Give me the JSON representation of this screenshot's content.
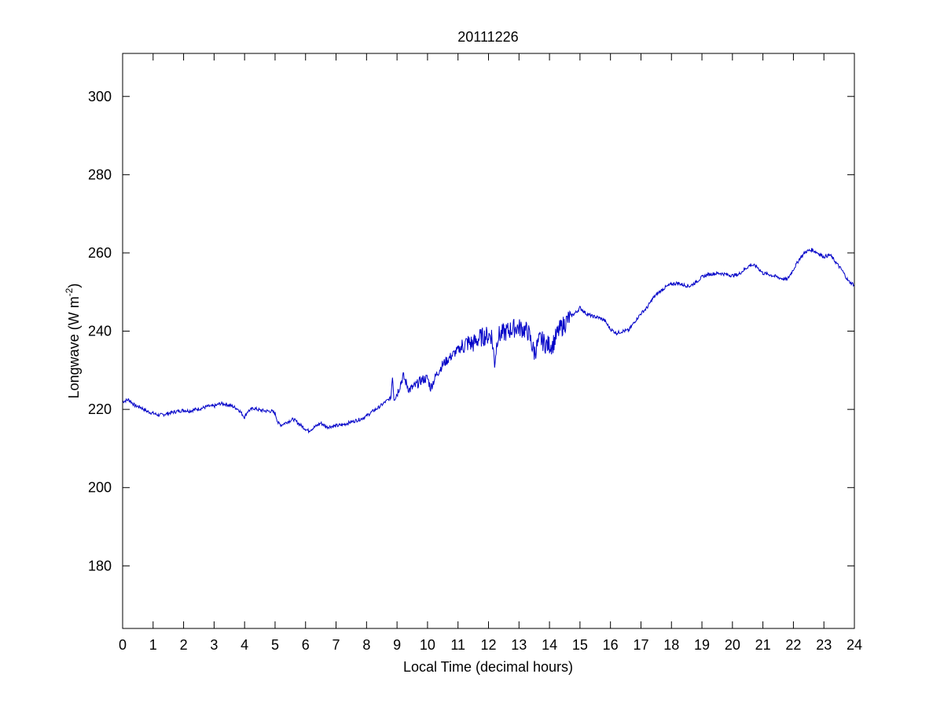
{
  "chart_data": {
    "type": "line",
    "title": "20111226",
    "xlabel": "Local Time (decimal hours)",
    "ylabel": {
      "text": "Longwave (W m",
      "superscript": "-2",
      "suffix": ")"
    },
    "xlim": [
      0,
      24
    ],
    "ylim": [
      164,
      311
    ],
    "x_ticks": [
      0,
      1,
      2,
      3,
      4,
      5,
      6,
      7,
      8,
      9,
      10,
      11,
      12,
      13,
      14,
      15,
      16,
      17,
      18,
      19,
      20,
      21,
      22,
      23,
      24
    ],
    "y_ticks": [
      180,
      200,
      220,
      240,
      260,
      280,
      300
    ],
    "grid": false,
    "line_color": "#0000c8",
    "series": [
      {
        "points": [
          [
            0.0,
            222
          ],
          [
            0.2,
            222.5
          ],
          [
            0.4,
            221
          ],
          [
            0.6,
            220.5
          ],
          [
            0.8,
            219.5
          ],
          [
            1.0,
            219
          ],
          [
            1.2,
            218.5
          ],
          [
            1.4,
            218.8
          ],
          [
            1.6,
            219.2
          ],
          [
            1.8,
            219.5
          ],
          [
            2.0,
            219.8
          ],
          [
            2.2,
            219.6
          ],
          [
            2.4,
            220
          ],
          [
            2.6,
            220.3
          ],
          [
            2.8,
            220.8
          ],
          [
            3.0,
            220.8
          ],
          [
            3.2,
            221.5
          ],
          [
            3.4,
            221.3
          ],
          [
            3.6,
            220.8
          ],
          [
            3.8,
            220
          ],
          [
            3.9,
            219
          ],
          [
            4.0,
            218
          ],
          [
            4.1,
            219.5
          ],
          [
            4.3,
            220.3
          ],
          [
            4.5,
            219.8
          ],
          [
            4.7,
            219.6
          ],
          [
            4.9,
            219.5
          ],
          [
            5.0,
            219
          ],
          [
            5.1,
            216.5
          ],
          [
            5.2,
            216
          ],
          [
            5.4,
            216.8
          ],
          [
            5.6,
            217.5
          ],
          [
            5.8,
            216.2
          ],
          [
            6.0,
            215
          ],
          [
            6.1,
            214.5
          ],
          [
            6.3,
            215.5
          ],
          [
            6.5,
            216.5
          ],
          [
            6.7,
            215.5
          ],
          [
            7.0,
            215.8
          ],
          [
            7.2,
            216
          ],
          [
            7.5,
            216.8
          ],
          [
            7.8,
            217.5
          ],
          [
            8.0,
            218.3
          ],
          [
            8.2,
            219.5
          ],
          [
            8.4,
            220.5
          ],
          [
            8.6,
            221.8
          ],
          [
            8.8,
            223
          ],
          [
            8.85,
            229
          ],
          [
            8.9,
            223
          ],
          [
            9.0,
            224
          ],
          [
            9.2,
            228.5
          ],
          [
            9.4,
            225
          ],
          [
            9.6,
            226
          ],
          [
            9.8,
            227.5
          ],
          [
            10.0,
            228
          ],
          [
            10.1,
            225.5
          ],
          [
            10.3,
            229
          ],
          [
            10.5,
            231.5
          ],
          [
            10.7,
            233
          ],
          [
            10.9,
            234.5
          ],
          [
            11.1,
            235.8
          ],
          [
            11.3,
            237
          ],
          [
            11.5,
            236.8
          ],
          [
            11.7,
            238.2
          ],
          [
            11.9,
            238.8
          ],
          [
            12.1,
            239
          ],
          [
            12.2,
            232
          ],
          [
            12.3,
            238.8
          ],
          [
            12.5,
            239.5
          ],
          [
            12.7,
            240.3
          ],
          [
            12.9,
            241
          ],
          [
            13.1,
            240.7
          ],
          [
            13.3,
            239.8
          ],
          [
            13.5,
            234.5
          ],
          [
            13.7,
            238
          ],
          [
            13.9,
            236.5
          ],
          [
            14.1,
            236.5
          ],
          [
            14.3,
            240
          ],
          [
            14.5,
            242
          ],
          [
            14.7,
            243.8
          ],
          [
            14.9,
            245
          ],
          [
            15.0,
            246
          ],
          [
            15.2,
            244.5
          ],
          [
            15.4,
            243.8
          ],
          [
            15.6,
            243.5
          ],
          [
            15.8,
            242.8
          ],
          [
            16.0,
            240.5
          ],
          [
            16.2,
            239.5
          ],
          [
            16.4,
            240
          ],
          [
            16.6,
            240.2
          ],
          [
            16.8,
            242.5
          ],
          [
            17.0,
            244.5
          ],
          [
            17.2,
            246
          ],
          [
            17.4,
            248.5
          ],
          [
            17.6,
            250
          ],
          [
            17.8,
            251.2
          ],
          [
            18.0,
            252
          ],
          [
            18.2,
            252.3
          ],
          [
            18.4,
            251.8
          ],
          [
            18.6,
            251.5
          ],
          [
            18.8,
            252.5
          ],
          [
            19.0,
            253.8
          ],
          [
            19.2,
            254.5
          ],
          [
            19.4,
            254.7
          ],
          [
            19.6,
            254.8
          ],
          [
            19.8,
            254.5
          ],
          [
            20.0,
            254.2
          ],
          [
            20.2,
            254.5
          ],
          [
            20.4,
            255.8
          ],
          [
            20.6,
            257
          ],
          [
            20.8,
            256.5
          ],
          [
            21.0,
            254.8
          ],
          [
            21.2,
            254.5
          ],
          [
            21.4,
            254
          ],
          [
            21.6,
            253.5
          ],
          [
            21.8,
            253.2
          ],
          [
            22.0,
            255.8
          ],
          [
            22.2,
            258.5
          ],
          [
            22.4,
            260.3
          ],
          [
            22.6,
            260.8
          ],
          [
            22.8,
            260
          ],
          [
            23.0,
            259
          ],
          [
            23.2,
            259.5
          ],
          [
            23.4,
            257.5
          ],
          [
            23.6,
            255.5
          ],
          [
            23.8,
            252.8
          ],
          [
            24.0,
            251.8
          ]
        ]
      }
    ]
  }
}
